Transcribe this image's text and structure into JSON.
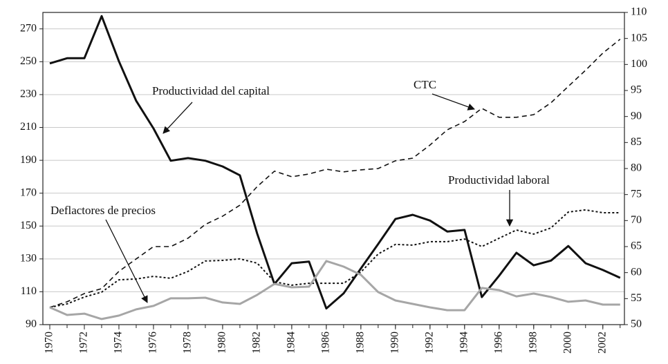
{
  "chart_data": {
    "type": "line",
    "x": [
      1970,
      1971,
      1972,
      1973,
      1974,
      1975,
      1976,
      1977,
      1978,
      1979,
      1980,
      1981,
      1982,
      1983,
      1984,
      1985,
      1986,
      1987,
      1988,
      1989,
      1990,
      1991,
      1992,
      1993,
      1994,
      1995,
      1996,
      1997,
      1998,
      1999,
      2000,
      2001,
      2002,
      2003
    ],
    "xlim": [
      1969.6,
      2003.25
    ],
    "xticks": [
      1970,
      1972,
      1974,
      1976,
      1978,
      1980,
      1982,
      1984,
      1986,
      1988,
      1990,
      1992,
      1994,
      1996,
      1998,
      2000,
      2002
    ],
    "ylim": [
      90,
      280
    ],
    "yticks": [
      90,
      110,
      130,
      150,
      170,
      190,
      210,
      230,
      250,
      270
    ],
    "y2lim": [
      50,
      110
    ],
    "y2ticks": [
      50,
      55,
      60,
      65,
      70,
      75,
      80,
      85,
      90,
      95,
      100,
      105,
      110
    ],
    "grid": true,
    "series": [
      {
        "name": "Productividad del capital",
        "color": "#111111",
        "axis": "y2",
        "style": "solid",
        "values": [
          100.2,
          101.2,
          101.2,
          109.3,
          100.6,
          93.0,
          87.7,
          81.5,
          82.0,
          81.5,
          80.4,
          78.7,
          67.5,
          57.8,
          61.8,
          62.1,
          53.1,
          56.0,
          60.8,
          65.5,
          70.3,
          71.1,
          70.0,
          67.9,
          68.2,
          55.3,
          59.4,
          63.8,
          61.4,
          62.3,
          65.1,
          61.8,
          60.5,
          59.0
        ]
      },
      {
        "name": "CTC",
        "color": "#111111",
        "axis": "y",
        "style": "dashed",
        "values": [
          100.5,
          103.9,
          108.9,
          111.9,
          122.4,
          130,
          137.5,
          137.5,
          142.6,
          151,
          156,
          162.7,
          174,
          183.4,
          180,
          181.7,
          184.6,
          183,
          184.2,
          185,
          189.7,
          191.3,
          199.3,
          208.6,
          213.6,
          221.6,
          216.2,
          216.2,
          217.8,
          225,
          235,
          244.8,
          255.3,
          263.7
        ]
      },
      {
        "name": "Productividad laboral",
        "color": "#111111",
        "axis": "y",
        "style": "dotted",
        "values": [
          100.5,
          102.6,
          106.8,
          109.8,
          117.3,
          117.8,
          119.4,
          118.2,
          122.4,
          128.7,
          129.1,
          130,
          127.4,
          116.1,
          114,
          115.2,
          115.2,
          115.2,
          122,
          133,
          138.8,
          138.4,
          140.5,
          140.5,
          142.1,
          137.5,
          142.6,
          147.6,
          145.1,
          148.9,
          158.5,
          159.8,
          158.1,
          158.1
        ]
      },
      {
        "name": "Deflactores de precios",
        "color": "#a6a6a6",
        "axis": "y",
        "style": "solid",
        "values": [
          100.5,
          95.9,
          96.7,
          93.4,
          95.5,
          99.3,
          101.4,
          106,
          106,
          106.4,
          103.5,
          102.6,
          108.1,
          114.8,
          112.7,
          113.1,
          128.7,
          125.3,
          120.3,
          109.8,
          104.7,
          102.6,
          100.5,
          98.8,
          98.8,
          112.3,
          111,
          107.2,
          108.9,
          106.8,
          103.9,
          104.7,
          102.2,
          102.2
        ]
      }
    ],
    "annotations": [
      "Productividad del capital",
      "CTC",
      "Productividad laboral",
      "Deflactores de precios"
    ]
  }
}
